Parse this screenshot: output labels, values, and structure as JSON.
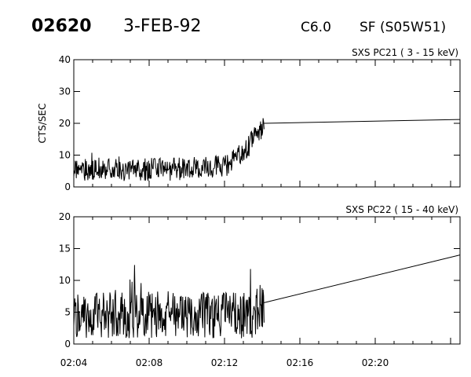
{
  "header": {
    "event_id": "02620",
    "date": "3-FEB-92",
    "goes_class": "C6.0",
    "flare_info": "SF (S05W51)"
  },
  "chart_data": [
    {
      "type": "line",
      "title": "SXS PC21  (  3 - 15 keV)",
      "xlabel": "",
      "ylabel": "CTS/SEC",
      "xlim": [
        4,
        24.5
      ],
      "ylim": [
        0,
        40
      ],
      "x_ticks": [
        {
          "v": 4,
          "label": "02:04"
        },
        {
          "v": 8,
          "label": "02:08"
        },
        {
          "v": 12,
          "label": "02:12"
        },
        {
          "v": 16,
          "label": "02:16"
        },
        {
          "v": 20,
          "label": "02:20"
        }
      ],
      "y_ticks": [
        0,
        10,
        20,
        30,
        40
      ],
      "grid": false,
      "noise_segment": {
        "x_start": 4.0,
        "x_end": 14.1,
        "samples": 380,
        "seed": 21,
        "baseline": [
          [
            4.0,
            5.5
          ],
          [
            9.0,
            5.5
          ],
          [
            12.0,
            6.5
          ],
          [
            13.0,
            10.5
          ],
          [
            13.6,
            15.5
          ],
          [
            14.1,
            20.0
          ]
        ],
        "amplitude": 4.5
      },
      "line_segment": [
        [
          14.1,
          20.0
        ],
        [
          24.5,
          21.2
        ]
      ]
    },
    {
      "type": "line",
      "title": "SXS PC22  ( 15 - 40 keV)",
      "xlabel": "",
      "ylabel": "",
      "xlim": [
        4,
        24.5
      ],
      "ylim": [
        0,
        20
      ],
      "x_ticks": [
        {
          "v": 4,
          "label": "02:04"
        },
        {
          "v": 8,
          "label": "02:08"
        },
        {
          "v": 12,
          "label": "02:12"
        },
        {
          "v": 16,
          "label": "02:16"
        },
        {
          "v": 20,
          "label": "02:20"
        }
      ],
      "y_ticks": [
        0,
        5,
        10,
        15,
        20
      ],
      "grid": false,
      "noise_segment": {
        "x_start": 4.0,
        "x_end": 14.1,
        "samples": 380,
        "seed": 22,
        "baseline": [
          [
            4.0,
            4.5
          ],
          [
            13.5,
            4.5
          ],
          [
            14.1,
            6.5
          ]
        ],
        "amplitude": 4.5
      },
      "line_segment": [
        [
          14.1,
          6.5
        ],
        [
          24.5,
          14.0
        ]
      ]
    }
  ]
}
